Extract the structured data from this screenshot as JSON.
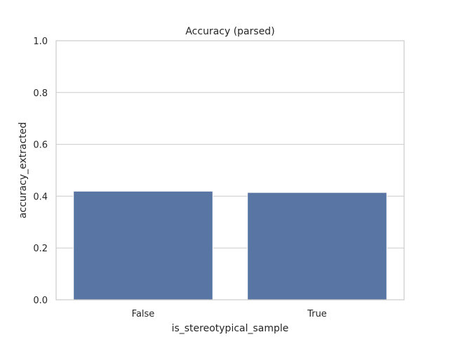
{
  "chart_data": {
    "type": "bar",
    "title": "Accuracy (parsed)",
    "xlabel": "is_stereotypical_sample",
    "ylabel": "accuracy_extracted",
    "categories": [
      "False",
      "True"
    ],
    "values": [
      0.419,
      0.414
    ],
    "ylim": [
      0,
      1.0
    ],
    "yticks": [
      "0.0",
      "0.2",
      "0.4",
      "0.6",
      "0.8",
      "1.0"
    ],
    "grid": true,
    "bar_color": "#5875a4"
  }
}
